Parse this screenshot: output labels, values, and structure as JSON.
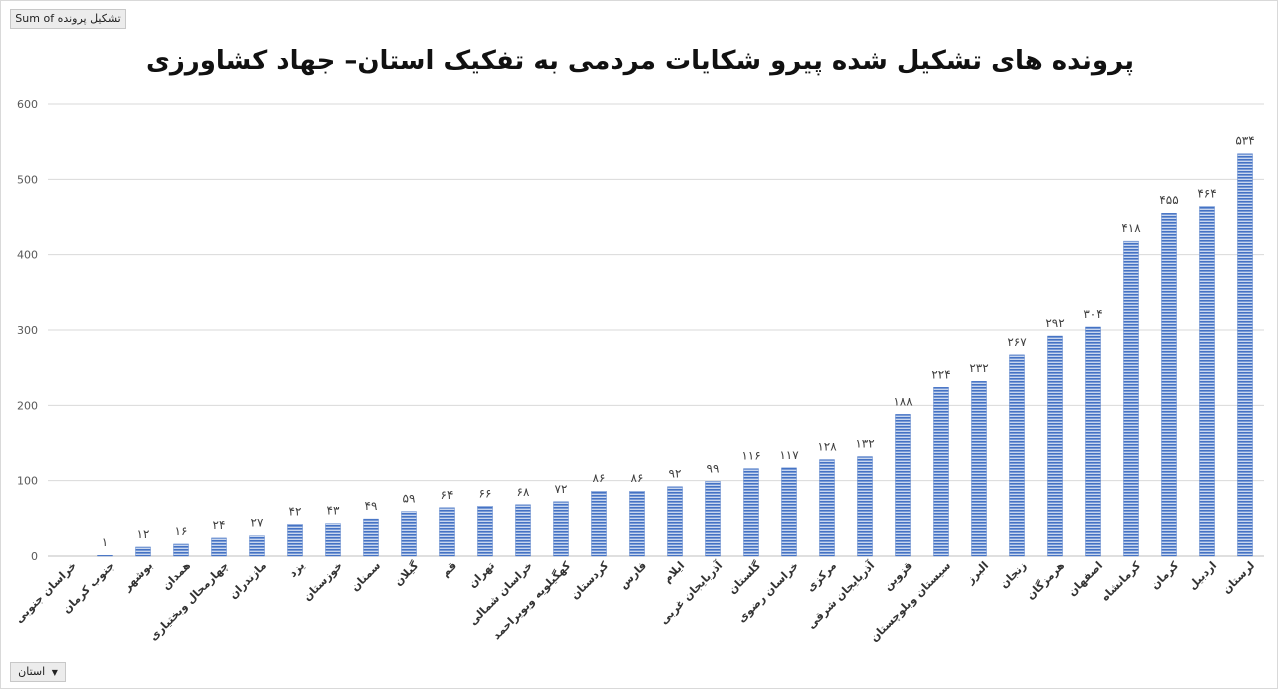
{
  "pivot": {
    "value_field": "Sum of تشکیل پرونده",
    "axis_field": "استان"
  },
  "colors": {
    "bar": "#4472c4",
    "bar_light": "#c9d7ef",
    "grid": "#d9d9d9"
  },
  "chart_data": {
    "type": "bar",
    "title": "پرونده های تشکیل شده پیرو شکایات مردمی به تفکیک استان– جهاد کشاورزی",
    "ylim": [
      0,
      600
    ],
    "yticks": [
      "0",
      "100",
      "200",
      "300",
      "400",
      "500",
      "600"
    ],
    "grid": true,
    "legend": "none",
    "categories": [
      "خراسان جنوبی",
      "جنوب کرمان",
      "بوشهر",
      "همدان",
      "چهارمحال وبختیاری",
      "مازندران",
      "یزد",
      "خوزستان",
      "سمنان",
      "گیلان",
      "قم",
      "تهران",
      "خراسان شمالی",
      "کهگیلویه وبویراحمد",
      "کردستان",
      "فارس",
      "ایلام",
      "آذربایجان غربی",
      "گلستان",
      "خراسان رضوی",
      "مرکزی",
      "آذربایجان شرقی",
      "قزوین",
      "سیستان وبلوچستان",
      "البرز",
      "زنجان",
      "هرمزگان",
      "اصفهان",
      "کرمانشاه",
      "کرمان",
      "اردبیل",
      "لرستان"
    ],
    "values": [
      null,
      1,
      12,
      16,
      24,
      27,
      42,
      43,
      49,
      59,
      64,
      66,
      68,
      72,
      86,
      86,
      92,
      99,
      116,
      117,
      128,
      132,
      188,
      224,
      232,
      267,
      292,
      304,
      418,
      455,
      464,
      534
    ],
    "data_labels": [
      "",
      "۱",
      "۱۲",
      "۱۶",
      "۲۴",
      "۲۷",
      "۴۲",
      "۴۳",
      "۴۹",
      "۵۹",
      "۶۴",
      "۶۶",
      "۶۸",
      "۷۲",
      "۸۶",
      "۸۶",
      "۹۲",
      "۹۹",
      "۱۱۶",
      "۱۱۷",
      "۱۲۸",
      "۱۳۲",
      "۱۸۸",
      "۲۲۴",
      "۲۳۲",
      "۲۶۷",
      "۲۹۲",
      "۳۰۴",
      "۴۱۸",
      "۴۵۵",
      "۴۶۴",
      "۵۳۴"
    ]
  }
}
